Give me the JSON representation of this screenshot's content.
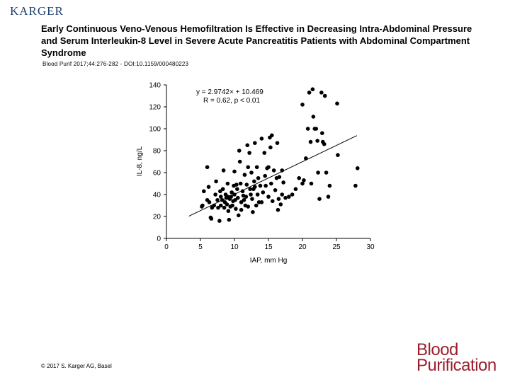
{
  "header": {
    "publisher_logo": "KARGER",
    "title": "Early Continuous Veno-Venous Hemofiltration Is Effective in Decreasing Intra-Abdominal Pressure and Serum Interleukin-8 Level in Severe Acute Pancreatitis Patients with Abdominal Compartment Syndrome",
    "citation": "Blood Purif 2017;44:276-282 - DOI:10.1159/000480223"
  },
  "footer": {
    "copyright": "© 2017 S. Karger AG, Basel",
    "journal_logo_line1": "Blood",
    "journal_logo_line2": "Purification"
  },
  "colors": {
    "points": "#000000",
    "axis": "#000000",
    "journal": "#9a1f2e",
    "publisher": "#1b3f6b"
  },
  "chart_data": {
    "type": "scatter",
    "xlabel": "IAP, mm Hg",
    "ylabel": "IL-8, ng/L",
    "xlim": [
      0,
      30
    ],
    "ylim": [
      0,
      140
    ],
    "xticks": [
      0,
      5,
      10,
      15,
      20,
      25,
      30
    ],
    "yticks": [
      0,
      20,
      40,
      60,
      80,
      100,
      120,
      140
    ],
    "grid": false,
    "annotation_line1": "y = 2.9742× + 10.469",
    "annotation_line2": "R = 0.62, p < 0.01",
    "regression": {
      "slope": 2.9742,
      "intercept": 10.469,
      "x_range": [
        3.3,
        28
      ]
    },
    "points": [
      [
        5.2,
        29
      ],
      [
        5.3,
        30
      ],
      [
        5.5,
        43
      ],
      [
        6.0,
        65
      ],
      [
        6.0,
        35
      ],
      [
        6.2,
        47
      ],
      [
        6.3,
        33
      ],
      [
        6.5,
        19
      ],
      [
        6.6,
        18
      ],
      [
        6.7,
        28
      ],
      [
        7.0,
        30
      ],
      [
        7.2,
        40
      ],
      [
        7.3,
        52
      ],
      [
        7.5,
        35
      ],
      [
        7.6,
        28
      ],
      [
        7.8,
        16
      ],
      [
        7.9,
        43
      ],
      [
        8.0,
        38
      ],
      [
        8.0,
        30
      ],
      [
        8.2,
        35
      ],
      [
        8.3,
        45
      ],
      [
        8.4,
        62
      ],
      [
        8.5,
        28
      ],
      [
        8.6,
        33
      ],
      [
        8.7,
        40
      ],
      [
        8.8,
        37
      ],
      [
        8.9,
        31
      ],
      [
        9.0,
        50
      ],
      [
        9.0,
        38
      ],
      [
        9.1,
        25
      ],
      [
        9.2,
        17
      ],
      [
        9.3,
        36
      ],
      [
        9.4,
        29
      ],
      [
        9.5,
        38
      ],
      [
        9.6,
        42
      ],
      [
        9.7,
        30
      ],
      [
        9.8,
        34
      ],
      [
        9.9,
        48
      ],
      [
        10.0,
        61
      ],
      [
        10.0,
        40
      ],
      [
        10.1,
        35
      ],
      [
        10.2,
        27
      ],
      [
        10.3,
        49
      ],
      [
        10.4,
        45
      ],
      [
        10.5,
        37
      ],
      [
        10.6,
        21
      ],
      [
        10.7,
        80
      ],
      [
        10.8,
        70
      ],
      [
        10.9,
        50
      ],
      [
        11.0,
        33
      ],
      [
        11.0,
        26
      ],
      [
        11.2,
        43
      ],
      [
        11.3,
        39
      ],
      [
        11.4,
        35
      ],
      [
        11.5,
        58
      ],
      [
        11.6,
        30
      ],
      [
        11.7,
        38
      ],
      [
        11.8,
        49
      ],
      [
        11.9,
        85
      ],
      [
        12.0,
        65
      ],
      [
        12.0,
        29
      ],
      [
        12.2,
        78
      ],
      [
        12.3,
        45
      ],
      [
        12.4,
        40
      ],
      [
        12.5,
        60
      ],
      [
        12.6,
        36
      ],
      [
        12.7,
        24
      ],
      [
        12.8,
        45
      ],
      [
        12.9,
        52
      ],
      [
        13.0,
        87
      ],
      [
        13.0,
        47
      ],
      [
        13.2,
        30
      ],
      [
        13.3,
        65
      ],
      [
        13.4,
        40
      ],
      [
        13.5,
        55
      ],
      [
        13.6,
        33
      ],
      [
        13.8,
        48
      ],
      [
        14.0,
        91
      ],
      [
        14.0,
        33
      ],
      [
        14.2,
        42
      ],
      [
        14.4,
        78
      ],
      [
        14.5,
        57
      ],
      [
        14.6,
        48
      ],
      [
        14.8,
        64
      ],
      [
        15.0,
        65
      ],
      [
        15.0,
        38
      ],
      [
        15.2,
        92
      ],
      [
        15.3,
        83
      ],
      [
        15.4,
        50
      ],
      [
        15.5,
        94
      ],
      [
        15.6,
        34
      ],
      [
        15.8,
        62
      ],
      [
        16.0,
        44
      ],
      [
        16.2,
        55
      ],
      [
        16.3,
        87
      ],
      [
        16.4,
        26
      ],
      [
        16.5,
        36
      ],
      [
        16.6,
        56
      ],
      [
        16.8,
        31
      ],
      [
        17.0,
        40
      ],
      [
        17.0,
        62
      ],
      [
        17.2,
        51
      ],
      [
        17.5,
        37
      ],
      [
        18.0,
        38
      ],
      [
        18.5,
        40
      ],
      [
        19.0,
        45
      ],
      [
        19.5,
        55
      ],
      [
        20.0,
        122
      ],
      [
        20.0,
        50
      ],
      [
        20.2,
        53
      ],
      [
        20.5,
        73
      ],
      [
        20.8,
        100
      ],
      [
        21.0,
        133
      ],
      [
        21.2,
        88
      ],
      [
        21.3,
        50
      ],
      [
        21.5,
        136
      ],
      [
        21.6,
        111
      ],
      [
        21.8,
        100
      ],
      [
        22.0,
        100
      ],
      [
        22.2,
        89
      ],
      [
        22.3,
        60
      ],
      [
        22.5,
        36
      ],
      [
        22.8,
        133
      ],
      [
        22.9,
        96
      ],
      [
        23.0,
        88
      ],
      [
        23.2,
        86
      ],
      [
        23.3,
        130
      ],
      [
        23.5,
        60
      ],
      [
        23.8,
        38
      ],
      [
        24.0,
        48
      ],
      [
        25.1,
        123
      ],
      [
        25.2,
        76
      ],
      [
        27.8,
        48
      ],
      [
        28.1,
        64
      ]
    ]
  }
}
